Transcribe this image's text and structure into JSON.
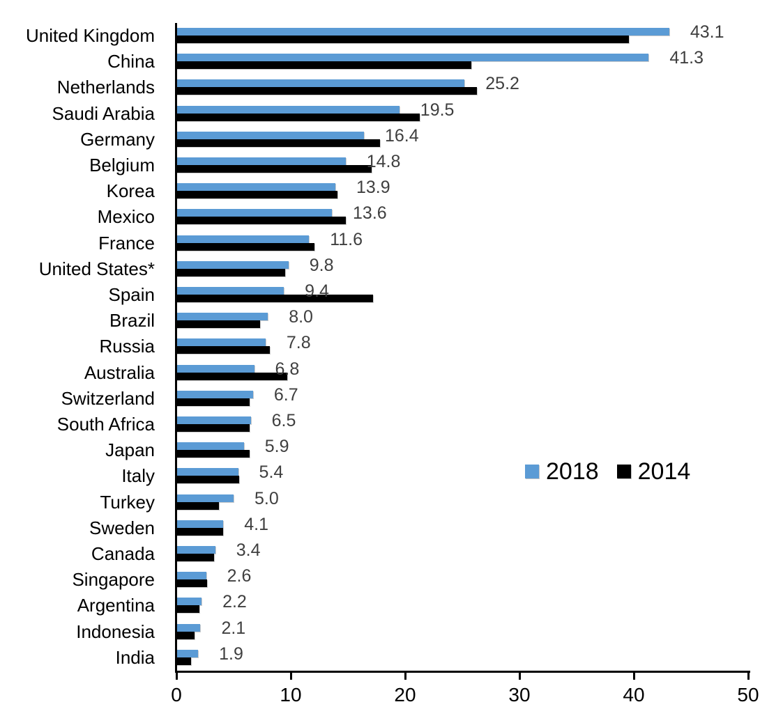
{
  "chart_data": {
    "type": "bar",
    "orientation": "horizontal",
    "title": "",
    "xlabel": "",
    "ylabel": "",
    "xlim": [
      0,
      50
    ],
    "x_ticks": [
      0,
      10,
      20,
      30,
      40,
      50
    ],
    "grid": false,
    "legend_position": "middle-right",
    "categories": [
      "United Kingdom",
      "China",
      "Netherlands",
      "Saudi Arabia",
      "Germany",
      "Belgium",
      "Korea",
      "Mexico",
      "France",
      "United States*",
      "Spain",
      "Brazil",
      "Russia",
      "Australia",
      "Switzerland",
      "South Africa",
      "Japan",
      "Italy",
      "Turkey",
      "Sweden",
      "Canada",
      "Singapore",
      "Argentina",
      "Indonesia",
      "India"
    ],
    "series": [
      {
        "name": "2018",
        "color": "#5B9BD5",
        "values": [
          43.1,
          41.3,
          25.2,
          19.5,
          16.4,
          14.8,
          13.9,
          13.6,
          11.6,
          9.8,
          9.4,
          8.0,
          7.8,
          6.8,
          6.7,
          6.5,
          5.9,
          5.4,
          5.0,
          4.1,
          3.4,
          2.6,
          2.2,
          2.1,
          1.9
        ]
      },
      {
        "name": "2014",
        "color": "#000000",
        "values": [
          39.6,
          25.8,
          26.3,
          21.3,
          17.8,
          17.1,
          14.1,
          14.8,
          12.1,
          9.5,
          17.2,
          7.3,
          8.2,
          9.7,
          6.4,
          6.4,
          6.4,
          5.5,
          3.7,
          4.1,
          3.3,
          2.7,
          2.0,
          1.6,
          1.3
        ]
      }
    ],
    "data_labels": [
      "43.1",
      "41.3",
      "25.2",
      "19.5",
      "16.4",
      "14.8",
      "13.9",
      "13.6",
      "11.6",
      "9.8",
      "9.4",
      "8.0",
      "7.8",
      "6.8",
      "6.7",
      "6.5",
      "5.9",
      "5.4",
      "5.0",
      "4.1",
      "3.4",
      "2.6",
      "2.2",
      "2.1",
      "1.9"
    ],
    "data_label_color": "#3F3F3F",
    "axis_color": "#000000",
    "x_tick_labels": [
      "0",
      "10",
      "20",
      "30",
      "40",
      "50"
    ]
  }
}
